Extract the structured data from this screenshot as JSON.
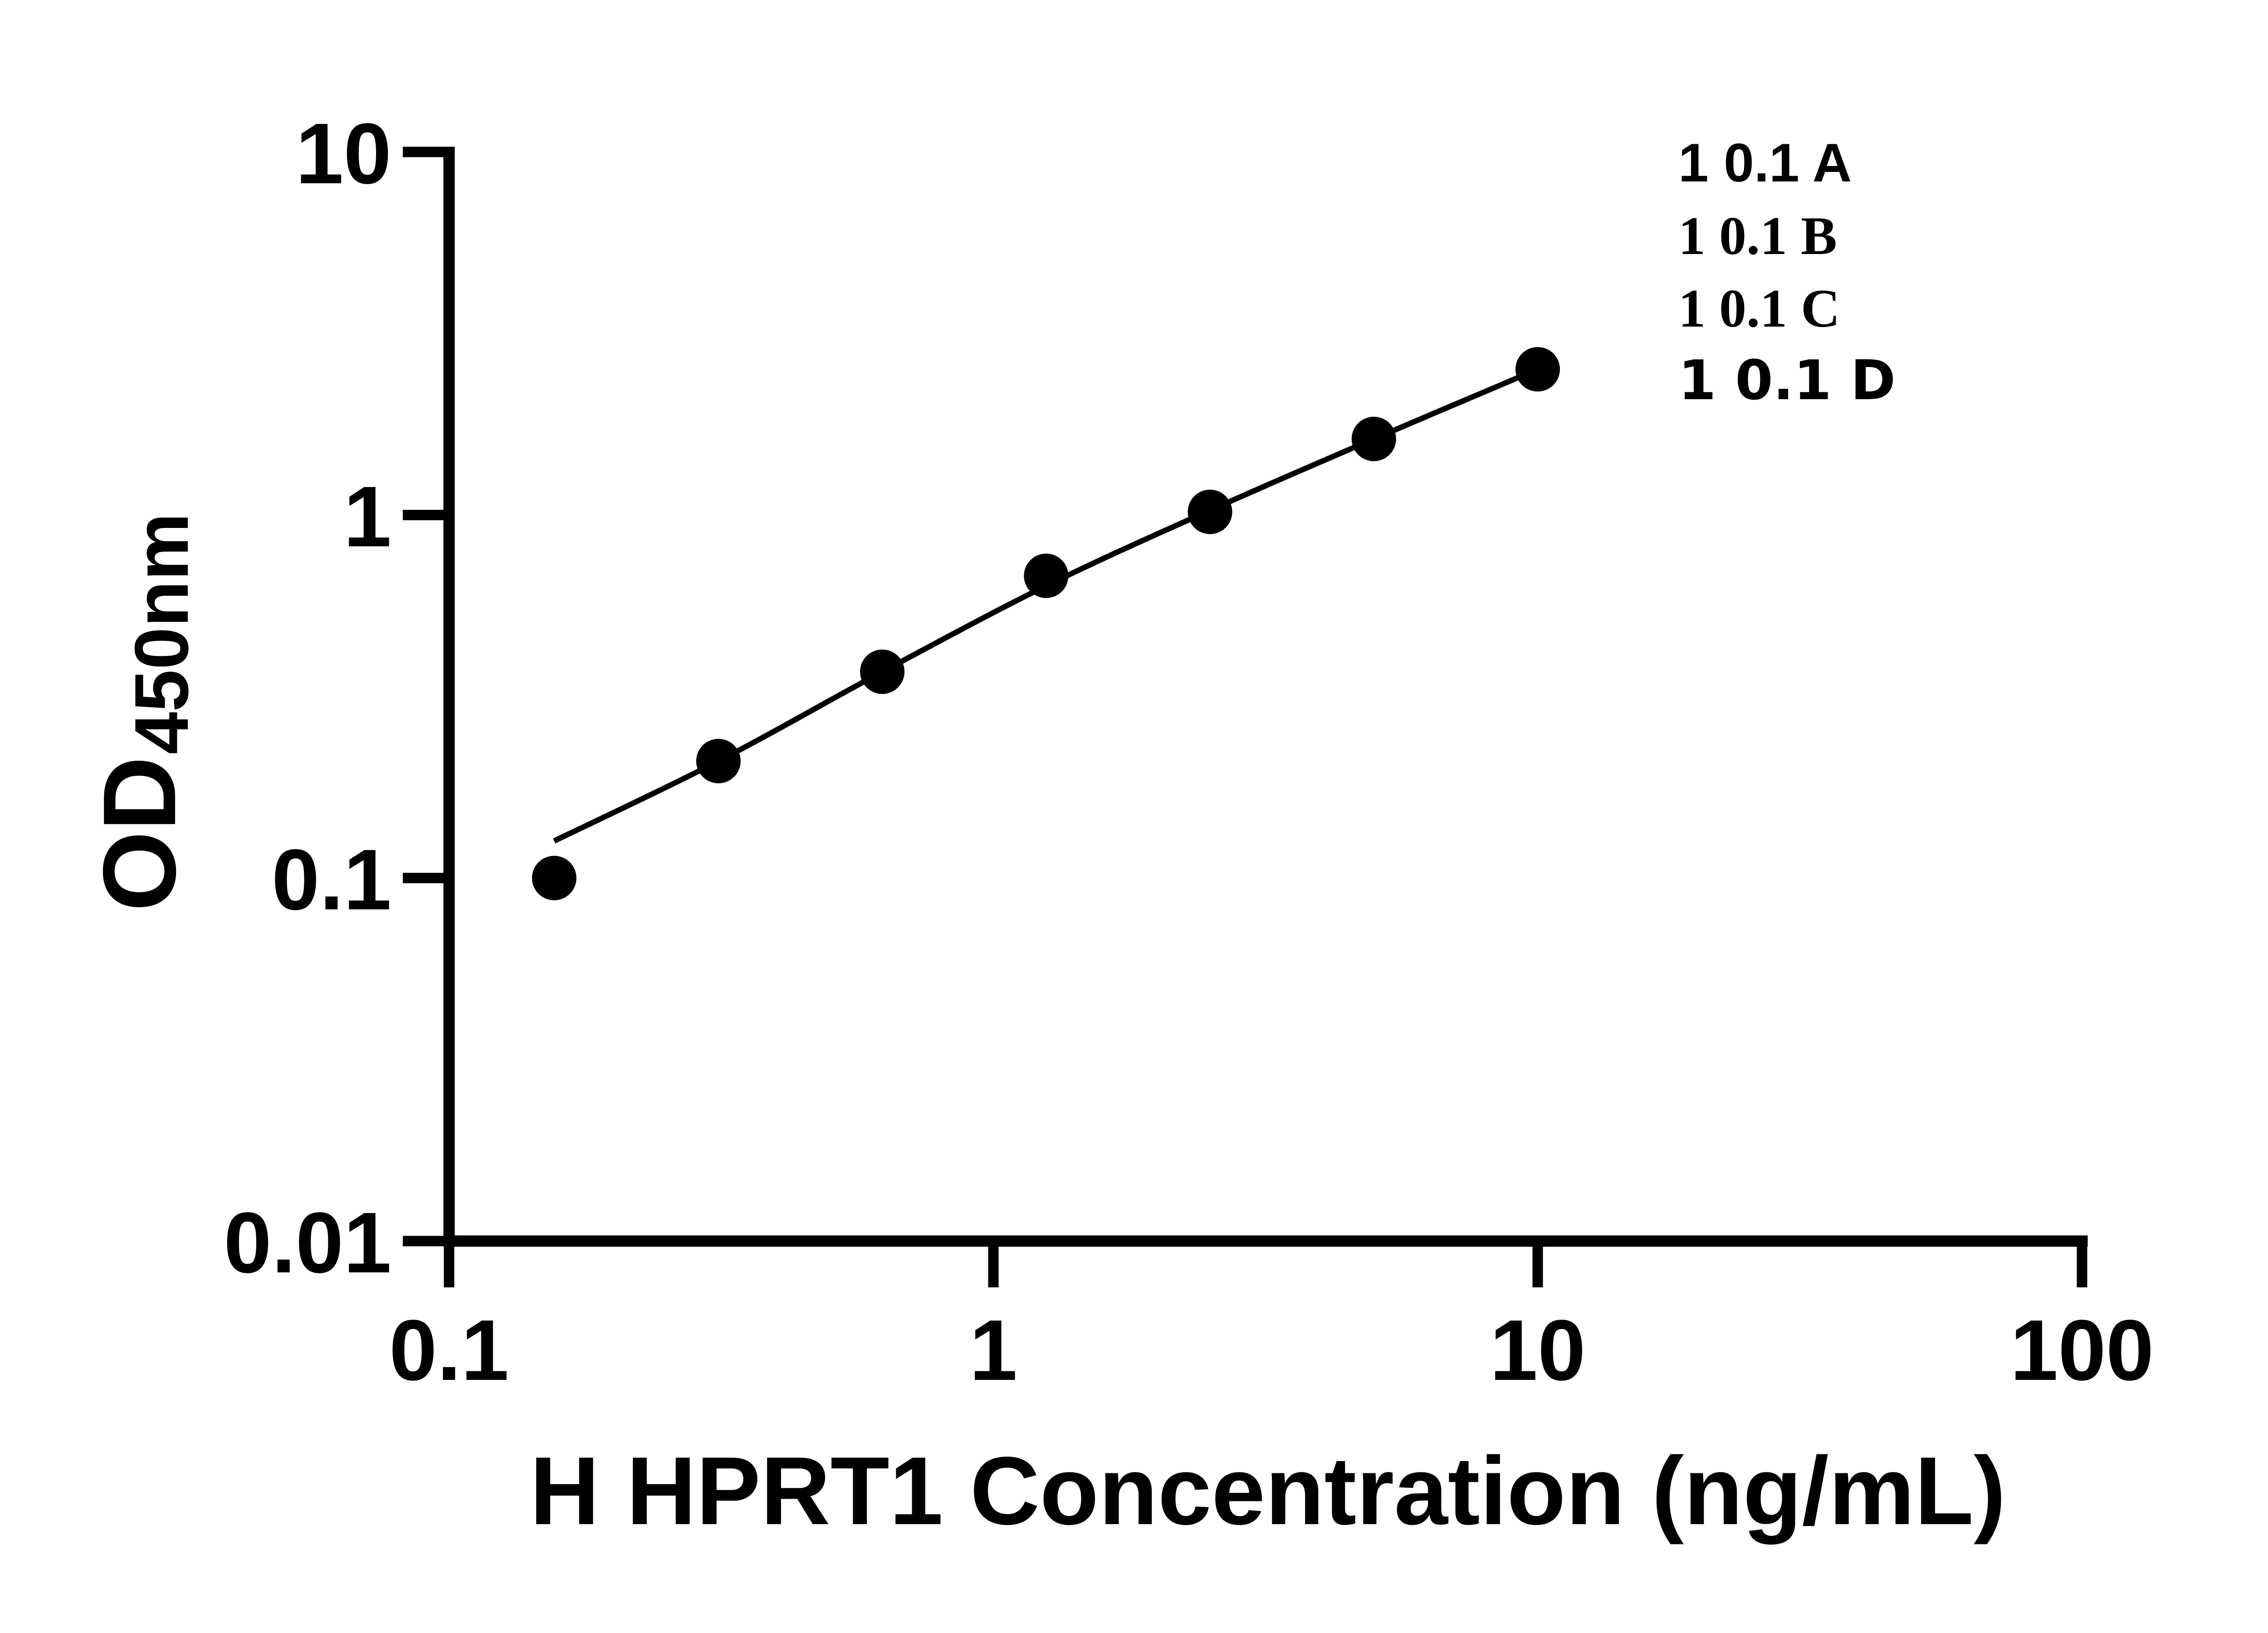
{
  "chart_data": {
    "type": "scatter",
    "xlabel": "H HPRT1 Concentration (ng/mL)",
    "ylabel_main": "OD",
    "ylabel_sub": "450nm",
    "x_scale": "log",
    "y_scale": "log",
    "xlim": [
      0.1,
      100
    ],
    "ylim": [
      0.01,
      10
    ],
    "x_axis": {
      "ticks": [
        {
          "v": 0.1,
          "label": "0.1"
        },
        {
          "v": 1,
          "label": "1"
        },
        {
          "v": 10,
          "label": "10"
        },
        {
          "v": 100,
          "label": "100"
        }
      ]
    },
    "y_axis": {
      "ticks": [
        {
          "v": 10,
          "label": "10"
        },
        {
          "v": 1,
          "label": "1"
        },
        {
          "v": 0.1,
          "label": "0.1"
        },
        {
          "v": 0.01,
          "label": "0.01"
        }
      ]
    },
    "points": [
      {
        "x": 0.156,
        "y": 0.1
      },
      {
        "x": 0.3125,
        "y": 0.21
      },
      {
        "x": 0.625,
        "y": 0.37
      },
      {
        "x": 1.25,
        "y": 0.68
      },
      {
        "x": 2.5,
        "y": 1.02
      },
      {
        "x": 5,
        "y": 1.62
      },
      {
        "x": 10,
        "y": 2.52
      }
    ],
    "fit_curve": [
      [
        0.156,
        0.1265
      ],
      [
        0.3125,
        0.21
      ],
      [
        0.625,
        0.37
      ],
      [
        1.25,
        0.638
      ],
      [
        2.5,
        1.03
      ],
      [
        5,
        1.62
      ],
      [
        10,
        2.52
      ]
    ],
    "marker_color": "#000000",
    "line_color": "#000000"
  }
}
